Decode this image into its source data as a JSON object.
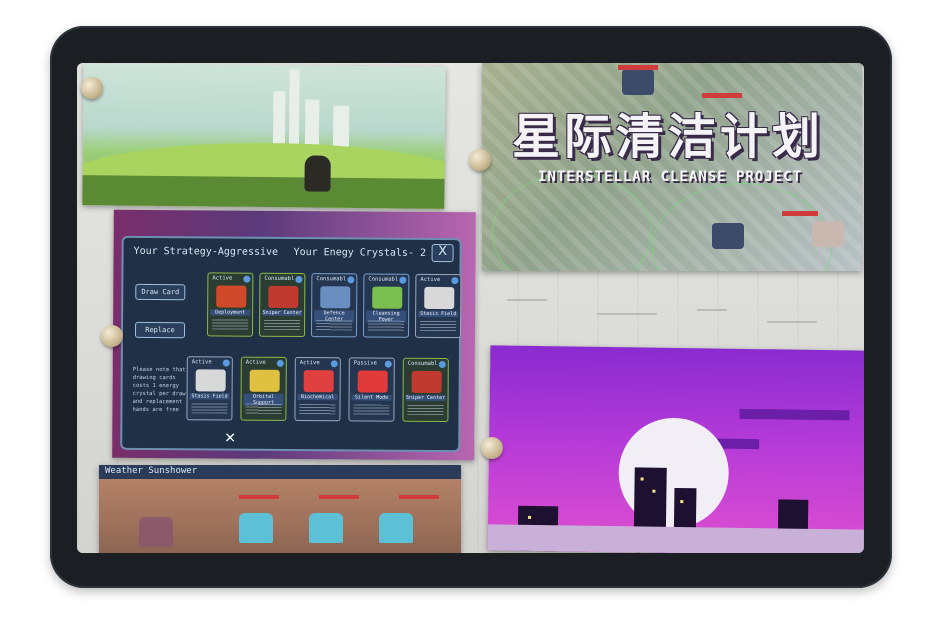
{
  "photos": {
    "interstellar": {
      "title_cn": "星际清洁计划",
      "title_en": "INTERSTELLAR CLEANSE PROJECT"
    },
    "game_panel": {
      "strategy_text": "Your Strategy-Aggressive",
      "crystals_text": "Your Enegy Crystals- 2",
      "close_label": "X",
      "draw_card_label": "Draw Card",
      "replace_label": "Replace",
      "note": "Please note that drawing cards costs 1 energy crystal per draw and replacement hands are free",
      "cards_top": [
        {
          "status": "Active",
          "name": "Deployment",
          "color": "#d04a2a"
        },
        {
          "status": "Consumabl",
          "name": "Sniper Center",
          "color": "#c03a30"
        },
        {
          "status": "Consumabl",
          "name": "Defence Center",
          "color": "#6a8ec0"
        },
        {
          "status": "Consumabl",
          "name": "Cleansing Power",
          "color": "#7ac050"
        },
        {
          "status": "Active",
          "name": "Stasis Field",
          "color": "#d8d8d8"
        }
      ],
      "cards_bottom": [
        {
          "status": "Active",
          "name": "Stasis Field",
          "color": "#d8d8d8"
        },
        {
          "status": "Active",
          "name": "Orbital Support",
          "color": "#e0c040"
        },
        {
          "status": "Active",
          "name": "Biochemical",
          "color": "#e04040"
        },
        {
          "status": "Passive",
          "name": "Silent Mode",
          "color": "#e03a3a"
        },
        {
          "status": "Consumabl",
          "name": "Sniper Center",
          "color": "#c03a30"
        }
      ],
      "bottom_mark": "✕"
    },
    "battle": {
      "bar_text": "Weather Sunshower"
    }
  }
}
